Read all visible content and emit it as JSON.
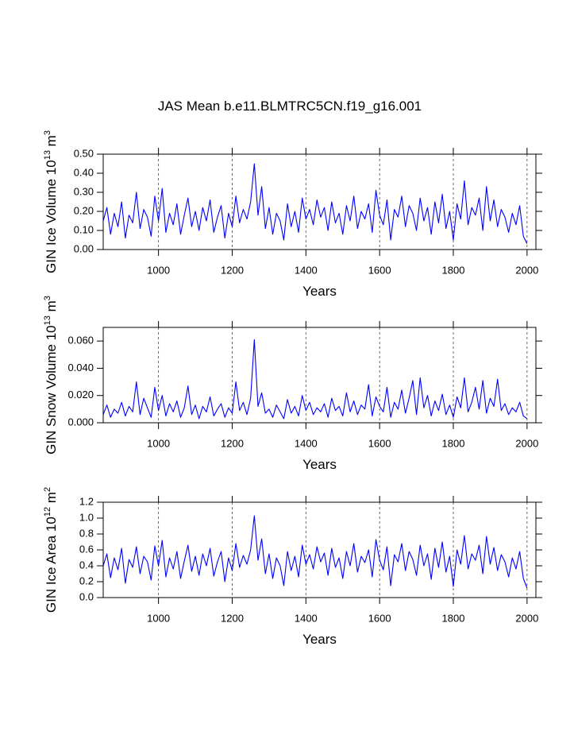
{
  "title": "JAS Mean b.e11.BLMTRC5CN.f19_g16.001",
  "chart_data": [
    {
      "type": "line",
      "color": "#0000ff",
      "grid": true,
      "xlabel": "Years",
      "ylabel": {
        "text": "GIN Ice Volume 10",
        "exponent": "13",
        "unit": " m",
        "unit_exponent": "3"
      },
      "xlim": [
        850,
        2024
      ],
      "xticks": [
        1000,
        1200,
        1400,
        1600,
        1800,
        2000
      ],
      "ylim": [
        0,
        0.5
      ],
      "yticks": [
        {
          "value": 0,
          "label": "0.00"
        },
        {
          "value": 0.1,
          "label": "0.10"
        },
        {
          "value": 0.2,
          "label": "0.20"
        },
        {
          "value": 0.3,
          "label": "0.30"
        },
        {
          "value": 0.4,
          "label": "0.40"
        },
        {
          "value": 0.5,
          "label": "0.50"
        }
      ],
      "x": [
        850,
        860,
        870,
        880,
        890,
        900,
        910,
        920,
        930,
        940,
        950,
        960,
        970,
        980,
        990,
        1000,
        1010,
        1020,
        1030,
        1040,
        1050,
        1060,
        1070,
        1080,
        1090,
        1100,
        1110,
        1120,
        1130,
        1140,
        1150,
        1160,
        1170,
        1180,
        1190,
        1200,
        1210,
        1220,
        1230,
        1240,
        1250,
        1260,
        1270,
        1280,
        1290,
        1300,
        1310,
        1320,
        1330,
        1340,
        1350,
        1360,
        1370,
        1380,
        1390,
        1400,
        1410,
        1420,
        1430,
        1440,
        1450,
        1460,
        1470,
        1480,
        1490,
        1500,
        1510,
        1520,
        1530,
        1540,
        1550,
        1560,
        1570,
        1580,
        1590,
        1600,
        1610,
        1620,
        1630,
        1640,
        1650,
        1660,
        1670,
        1680,
        1690,
        1700,
        1710,
        1720,
        1730,
        1740,
        1750,
        1760,
        1770,
        1780,
        1790,
        1800,
        1810,
        1820,
        1830,
        1840,
        1850,
        1860,
        1870,
        1880,
        1890,
        1900,
        1910,
        1920,
        1930,
        1940,
        1950,
        1960,
        1970,
        1980,
        1990,
        2000
      ],
      "values": [
        0.15,
        0.22,
        0.08,
        0.19,
        0.12,
        0.25,
        0.06,
        0.18,
        0.14,
        0.3,
        0.11,
        0.21,
        0.17,
        0.07,
        0.28,
        0.15,
        0.32,
        0.09,
        0.19,
        0.13,
        0.24,
        0.08,
        0.18,
        0.27,
        0.12,
        0.2,
        0.1,
        0.22,
        0.15,
        0.26,
        0.09,
        0.17,
        0.23,
        0.06,
        0.19,
        0.12,
        0.28,
        0.14,
        0.21,
        0.16,
        0.25,
        0.45,
        0.18,
        0.33,
        0.11,
        0.22,
        0.08,
        0.19,
        0.15,
        0.05,
        0.24,
        0.12,
        0.2,
        0.09,
        0.27,
        0.16,
        0.21,
        0.13,
        0.26,
        0.17,
        0.22,
        0.1,
        0.25,
        0.14,
        0.19,
        0.08,
        0.23,
        0.15,
        0.28,
        0.11,
        0.2,
        0.16,
        0.24,
        0.09,
        0.31,
        0.18,
        0.13,
        0.26,
        0.05,
        0.21,
        0.17,
        0.28,
        0.12,
        0.23,
        0.19,
        0.1,
        0.27,
        0.15,
        0.22,
        0.08,
        0.25,
        0.14,
        0.29,
        0.11,
        0.2,
        0.05,
        0.24,
        0.16,
        0.36,
        0.13,
        0.22,
        0.18,
        0.27,
        0.1,
        0.33,
        0.15,
        0.26,
        0.12,
        0.21,
        0.17,
        0.09,
        0.19,
        0.13,
        0.23,
        0.07,
        0.03
      ]
    },
    {
      "type": "line",
      "color": "#0000ff",
      "grid": true,
      "xlabel": "Years",
      "ylabel": {
        "text": "GIN Snow Volume 10",
        "exponent": "13",
        "unit": " m",
        "unit_exponent": "3"
      },
      "xlim": [
        850,
        2024
      ],
      "xticks": [
        1000,
        1200,
        1400,
        1600,
        1800,
        2000
      ],
      "ylim": [
        0,
        0.07
      ],
      "yticks": [
        {
          "value": 0,
          "label": "0.000"
        },
        {
          "value": 0.02,
          "label": "0.020"
        },
        {
          "value": 0.04,
          "label": "0.040"
        },
        {
          "value": 0.06,
          "label": "0.060"
        }
      ],
      "x": [
        850,
        860,
        870,
        880,
        890,
        900,
        910,
        920,
        930,
        940,
        950,
        960,
        970,
        980,
        990,
        1000,
        1010,
        1020,
        1030,
        1040,
        1050,
        1060,
        1070,
        1080,
        1090,
        1100,
        1110,
        1120,
        1130,
        1140,
        1150,
        1160,
        1170,
        1180,
        1190,
        1200,
        1210,
        1220,
        1230,
        1240,
        1250,
        1260,
        1270,
        1280,
        1290,
        1300,
        1310,
        1320,
        1330,
        1340,
        1350,
        1360,
        1370,
        1380,
        1390,
        1400,
        1410,
        1420,
        1430,
        1440,
        1450,
        1460,
        1470,
        1480,
        1490,
        1500,
        1510,
        1520,
        1530,
        1540,
        1550,
        1560,
        1570,
        1580,
        1590,
        1600,
        1610,
        1620,
        1630,
        1640,
        1650,
        1660,
        1670,
        1680,
        1690,
        1700,
        1710,
        1720,
        1730,
        1740,
        1750,
        1760,
        1770,
        1780,
        1790,
        1800,
        1810,
        1820,
        1830,
        1840,
        1850,
        1860,
        1870,
        1880,
        1890,
        1900,
        1910,
        1920,
        1930,
        1940,
        1950,
        1960,
        1970,
        1980,
        1990,
        2000
      ],
      "values": [
        0.006,
        0.013,
        0.004,
        0.01,
        0.007,
        0.015,
        0.005,
        0.012,
        0.008,
        0.03,
        0.006,
        0.018,
        0.011,
        0.004,
        0.026,
        0.009,
        0.02,
        0.005,
        0.014,
        0.008,
        0.016,
        0.004,
        0.011,
        0.027,
        0.006,
        0.013,
        0.003,
        0.012,
        0.008,
        0.019,
        0.005,
        0.01,
        0.014,
        0.004,
        0.011,
        0.007,
        0.03,
        0.009,
        0.015,
        0.006,
        0.018,
        0.061,
        0.012,
        0.022,
        0.007,
        0.01,
        0.004,
        0.013,
        0.008,
        0.003,
        0.017,
        0.007,
        0.012,
        0.005,
        0.02,
        0.009,
        0.015,
        0.006,
        0.011,
        0.008,
        0.014,
        0.004,
        0.018,
        0.009,
        0.012,
        0.005,
        0.022,
        0.008,
        0.016,
        0.006,
        0.013,
        0.01,
        0.028,
        0.005,
        0.019,
        0.012,
        0.008,
        0.026,
        0.004,
        0.015,
        0.01,
        0.024,
        0.007,
        0.018,
        0.031,
        0.006,
        0.033,
        0.011,
        0.02,
        0.005,
        0.016,
        0.009,
        0.021,
        0.006,
        0.013,
        0.004,
        0.019,
        0.011,
        0.033,
        0.008,
        0.015,
        0.026,
        0.01,
        0.031,
        0.007,
        0.018,
        0.012,
        0.032,
        0.009,
        0.014,
        0.006,
        0.011,
        0.008,
        0.015,
        0.005,
        0.003
      ]
    },
    {
      "type": "line",
      "color": "#0000ff",
      "grid": true,
      "xlabel": "Years",
      "ylabel": {
        "text": "GIN Ice Area 10",
        "exponent": "12",
        "unit": " m",
        "unit_exponent": "2"
      },
      "xlim": [
        850,
        2024
      ],
      "xticks": [
        1000,
        1200,
        1400,
        1600,
        1800,
        2000
      ],
      "ylim": [
        0,
        1.2
      ],
      "yticks": [
        {
          "value": 0,
          "label": "0.0"
        },
        0.2,
        0.4,
        0.6,
        0.8,
        {
          "value": 1,
          "label": "1.0"
        },
        1.2
      ],
      "x": [
        850,
        860,
        870,
        880,
        890,
        900,
        910,
        920,
        930,
        940,
        950,
        960,
        970,
        980,
        990,
        1000,
        1010,
        1020,
        1030,
        1040,
        1050,
        1060,
        1070,
        1080,
        1090,
        1100,
        1110,
        1120,
        1130,
        1140,
        1150,
        1160,
        1170,
        1180,
        1190,
        1200,
        1210,
        1220,
        1230,
        1240,
        1250,
        1260,
        1270,
        1280,
        1290,
        1300,
        1310,
        1320,
        1330,
        1340,
        1350,
        1360,
        1370,
        1380,
        1390,
        1400,
        1410,
        1420,
        1430,
        1440,
        1450,
        1460,
        1470,
        1480,
        1490,
        1500,
        1510,
        1520,
        1530,
        1540,
        1550,
        1560,
        1570,
        1580,
        1590,
        1600,
        1610,
        1620,
        1630,
        1640,
        1650,
        1660,
        1670,
        1680,
        1690,
        1700,
        1710,
        1720,
        1730,
        1740,
        1750,
        1760,
        1770,
        1780,
        1790,
        1800,
        1810,
        1820,
        1830,
        1840,
        1850,
        1860,
        1870,
        1880,
        1890,
        1900,
        1910,
        1920,
        1930,
        1940,
        1950,
        1960,
        1970,
        1980,
        1990,
        2000
      ],
      "values": [
        0.4,
        0.55,
        0.25,
        0.5,
        0.35,
        0.62,
        0.18,
        0.48,
        0.38,
        0.64,
        0.3,
        0.52,
        0.45,
        0.22,
        0.65,
        0.4,
        0.72,
        0.26,
        0.5,
        0.36,
        0.58,
        0.24,
        0.46,
        0.66,
        0.33,
        0.52,
        0.28,
        0.55,
        0.4,
        0.62,
        0.27,
        0.45,
        0.58,
        0.2,
        0.5,
        0.34,
        0.68,
        0.38,
        0.53,
        0.42,
        0.6,
        1.03,
        0.47,
        0.74,
        0.3,
        0.55,
        0.24,
        0.5,
        0.4,
        0.15,
        0.58,
        0.34,
        0.52,
        0.26,
        0.66,
        0.42,
        0.54,
        0.36,
        0.64,
        0.45,
        0.56,
        0.28,
        0.62,
        0.38,
        0.5,
        0.24,
        0.58,
        0.4,
        0.68,
        0.32,
        0.52,
        0.44,
        0.6,
        0.26,
        0.73,
        0.47,
        0.35,
        0.64,
        0.15,
        0.54,
        0.45,
        0.68,
        0.34,
        0.58,
        0.48,
        0.28,
        0.66,
        0.4,
        0.55,
        0.23,
        0.62,
        0.38,
        0.7,
        0.32,
        0.52,
        0.14,
        0.6,
        0.42,
        0.78,
        0.36,
        0.55,
        0.47,
        0.66,
        0.3,
        0.77,
        0.42,
        0.63,
        0.34,
        0.54,
        0.45,
        0.26,
        0.5,
        0.36,
        0.58,
        0.24,
        0.12
      ]
    }
  ]
}
